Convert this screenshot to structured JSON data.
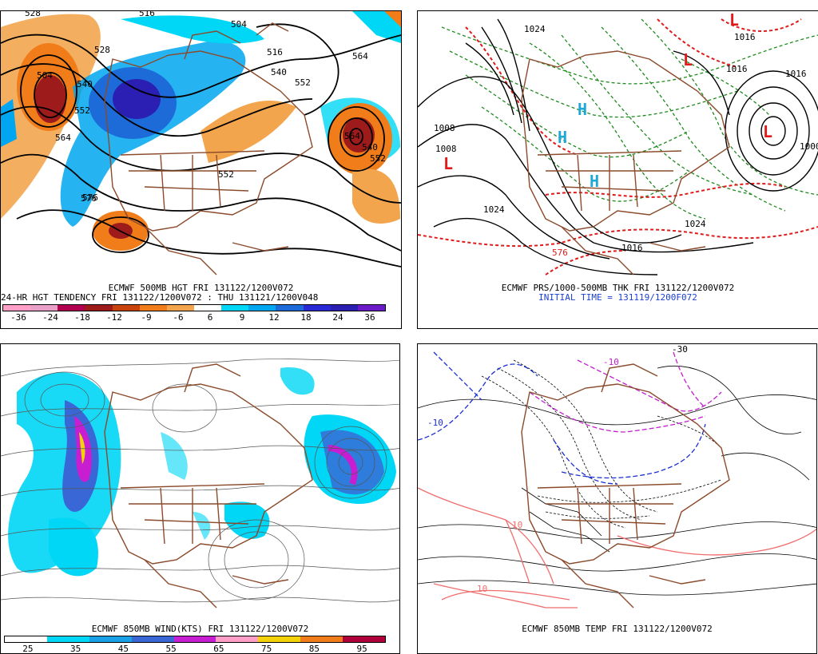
{
  "panels": {
    "top_left": {
      "caption_line1": "ECMWF 500MB HGT FRI 131122/1200V072",
      "caption_line2": "24-HR HGT TENDENCY FRI 131122/1200V072 : THU 131121/1200V048",
      "colorbar_ticks": [
        "-36",
        "-24",
        "-18",
        "-12",
        "-9",
        "-6",
        "6",
        "9",
        "12",
        "18",
        "24",
        "36"
      ],
      "colorbar_colors": [
        "#ff9ec7",
        "#e8a0c8",
        "#b0004f",
        "#9e1b1b",
        "#c9440d",
        "#f07c1a",
        "#f3a54e",
        "#ffffff",
        "#00d6f5",
        "#00a6ef",
        "#1d6bd8",
        "#2a2ad4",
        "#2b1fb3",
        "#6a1bc7"
      ],
      "contour_labels": [
        "528",
        "516",
        "504",
        "528",
        "540",
        "552",
        "564",
        "576",
        "516",
        "540",
        "552",
        "564",
        "504",
        "564",
        "552",
        "540",
        "552",
        "576"
      ]
    },
    "top_right": {
      "caption_line1": "ECMWF PRS/1000-500MB THK FRI 131122/1200V072",
      "caption_line2": "INITIAL TIME = 131119/1200F072",
      "pressure_labels": [
        "1024",
        "1008",
        "1008",
        "1024",
        "1016",
        "1024",
        "1016",
        "1016",
        "1000",
        "1016",
        "576"
      ],
      "low_symbol": "L",
      "high_symbol": "H"
    },
    "bottom_left": {
      "caption_line1": "ECMWF 850MB WIND(KTS) FRI 131122/1200V072",
      "colorbar_ticks": [
        "25",
        "35",
        "45",
        "55",
        "65",
        "75",
        "85",
        "95"
      ],
      "colorbar_colors": [
        "#ffffff",
        "#00d6f5",
        "#1aa0e6",
        "#3a67d6",
        "#c81ed2",
        "#ff9ec7",
        "#f4d20a",
        "#f07c1a",
        "#b0003b"
      ]
    },
    "bottom_right": {
      "caption_line1": "ECMWF 850MB TEMP FRI 131122/1200V072",
      "temp_labels": [
        "-30",
        "-10",
        "10",
        "10",
        "-10"
      ]
    }
  },
  "colors": {
    "country_borders": "#8b4a2b",
    "height_contours": "#000000",
    "thickness_warm": "#e01b1b",
    "thickness_cold": "#1e8a1e",
    "temp_cold": "#1a2fd1",
    "temp_freezing": "#c21ecf",
    "temp_warm": "#ef6d6d"
  }
}
